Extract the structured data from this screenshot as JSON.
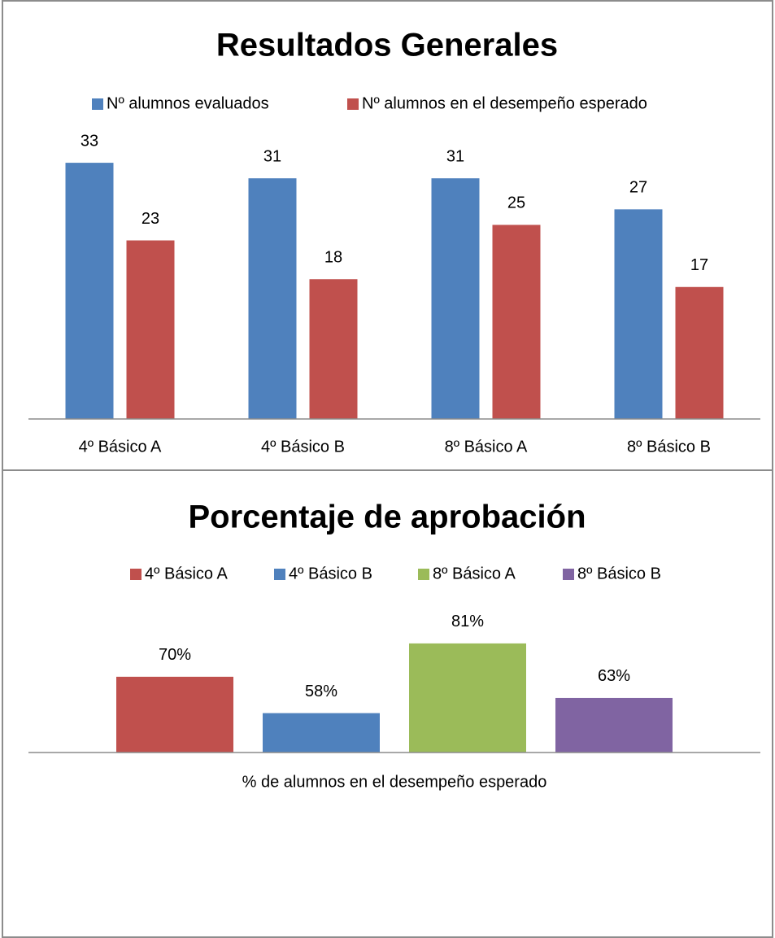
{
  "chart_data": [
    {
      "type": "bar",
      "title": "Resultados Generales",
      "categories": [
        "4º Básico A",
        "4º Básico B",
        "8º Básico A",
        "8º Básico B"
      ],
      "series": [
        {
          "name": "Nº alumnos evaluados",
          "color": "#4f81bd",
          "values": [
            33,
            31,
            31,
            27
          ]
        },
        {
          "name": "Nº alumnos en el desempeño esperado",
          "color": "#c0504d",
          "values": [
            23,
            18,
            25,
            17
          ]
        }
      ],
      "ylim": [
        0,
        35
      ],
      "legend": "top"
    },
    {
      "type": "bar",
      "title": "Porcentaje de aprobación",
      "categories": [
        "% de alumnos en el desempeño esperado"
      ],
      "series": [
        {
          "name": "4º Básico A",
          "color": "#c0504d",
          "values": [
            70
          ],
          "value_labels": [
            "70%"
          ]
        },
        {
          "name": "4º Básico B",
          "color": "#4f81bd",
          "values": [
            58
          ],
          "value_labels": [
            "58%"
          ]
        },
        {
          "name": "8º Básico A",
          "color": "#9bbb59",
          "values": [
            81
          ],
          "value_labels": [
            "81%"
          ]
        },
        {
          "name": "8º Básico B",
          "color": "#8064a2",
          "values": [
            63
          ],
          "value_labels": [
            "63%"
          ]
        }
      ],
      "ylim": [
        45,
        85
      ],
      "legend": "top"
    }
  ]
}
